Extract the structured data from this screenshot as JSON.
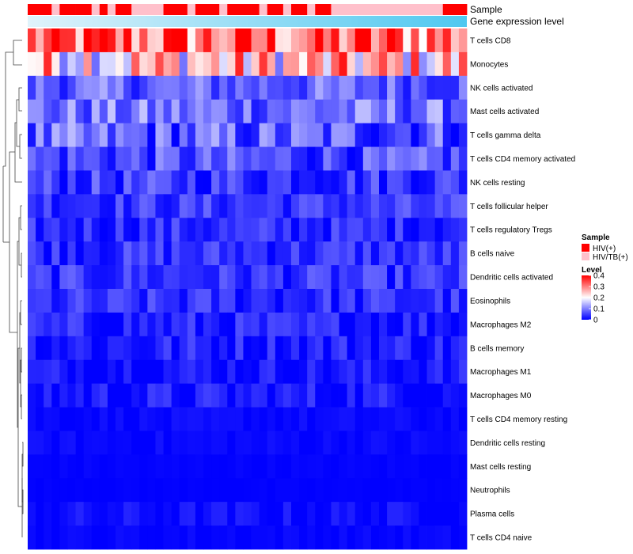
{
  "chart_data": {
    "type": "heatmap",
    "title": "",
    "n_samples": 55,
    "annotations": [
      {
        "name": "Sample",
        "label": "Sample"
      },
      {
        "name": "Gene expression level",
        "label": "Gene expression level"
      }
    ],
    "sample_groups": [
      "HIV(+)",
      "HIV(+)",
      "HIV(+)",
      "HIV/TB(+)",
      "HIV(+)",
      "HIV(+)",
      "HIV(+)",
      "HIV(+)",
      "HIV/TB(+)",
      "HIV(+)",
      "HIV/TB(+)",
      "HIV(+)",
      "HIV(+)",
      "HIV/TB(+)",
      "HIV/TB(+)",
      "HIV/TB(+)",
      "HIV/TB(+)",
      "HIV(+)",
      "HIV(+)",
      "HIV(+)",
      "HIV/TB(+)",
      "HIV(+)",
      "HIV(+)",
      "HIV(+)",
      "HIV/TB(+)",
      "HIV(+)",
      "HIV(+)",
      "HIV(+)",
      "HIV(+)",
      "HIV/TB(+)",
      "HIV(+)",
      "HIV(+)",
      "HIV/TB(+)",
      "HIV(+)",
      "HIV(+)",
      "HIV/TB(+)",
      "HIV(+)",
      "HIV(+)",
      "HIV/TB(+)",
      "HIV/TB(+)",
      "HIV/TB(+)",
      "HIV/TB(+)",
      "HIV/TB(+)",
      "HIV/TB(+)",
      "HIV/TB(+)",
      "HIV/TB(+)",
      "HIV/TB(+)",
      "HIV/TB(+)",
      "HIV/TB(+)",
      "HIV/TB(+)",
      "HIV/TB(+)",
      "HIV/TB(+)",
      "HIV(+)",
      "HIV(+)",
      "HIV(+)"
    ],
    "rows": [
      "T cells CD8",
      "Monocytes",
      "NK cells activated",
      "Mast cells activated",
      "T cells gamma delta",
      "T cells CD4 memory activated",
      "NK cells resting",
      "T cells follicular helper",
      "T cells regulatory  Tregs",
      "B cells naive",
      "Dendritic cells activated",
      "Eosinophils",
      "Macrophages M2",
      "B cells memory",
      "Macrophages M1",
      "Macrophages M0",
      "T cells CD4 memory resting",
      "Dendritic cells resting",
      "Mast cells resting",
      "Neutrophils",
      "Plasma cells",
      "T cells CD4 naive"
    ],
    "row_levels": [
      0.3,
      0.22,
      0.07,
      0.08,
      0.06,
      0.05,
      0.04,
      0.04,
      0.03,
      0.035,
      0.035,
      0.03,
      0.02,
      0.02,
      0.015,
      0.015,
      0.005,
      0.005,
      0.002,
      0.001,
      0.008,
      0.003
    ],
    "row_spread": [
      0.14,
      0.15,
      0.06,
      0.07,
      0.08,
      0.06,
      0.05,
      0.04,
      0.04,
      0.04,
      0.04,
      0.04,
      0.04,
      0.04,
      0.03,
      0.035,
      0.01,
      0.01,
      0.004,
      0.002,
      0.02,
      0.008
    ],
    "legend": {
      "sample": {
        "title": "Sample",
        "items": [
          {
            "label": "HIV(+)",
            "color": "#ff0000"
          },
          {
            "label": "HIV/TB(+)",
            "color": "#ffc0cb"
          }
        ]
      },
      "level": {
        "title": "Level",
        "ticks": [
          0.4,
          0.3,
          0.2,
          0.1,
          0
        ],
        "range": [
          0,
          0.4
        ]
      }
    }
  },
  "colors": {
    "low": "#0000ff",
    "mid": "#ffffff",
    "high": "#ff0000",
    "hiv": "#ff0000",
    "hivtb": "#ffc0cb",
    "gradient_start": "#e0f3fb",
    "gradient_end": "#4fc8f0"
  }
}
